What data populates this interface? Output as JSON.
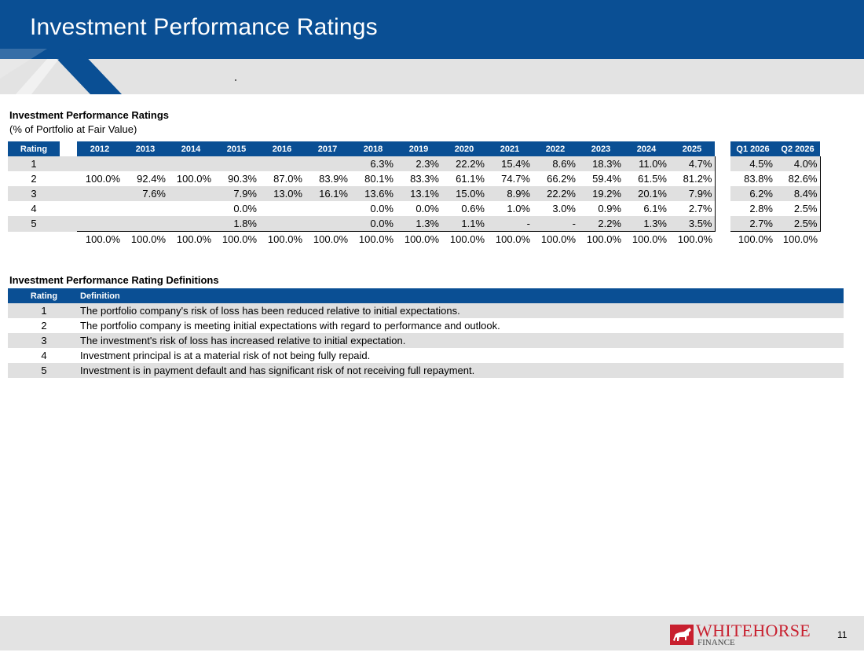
{
  "header": {
    "title": "Investment Performance Ratings"
  },
  "ratings_table": {
    "title": "Investment Performance Ratings",
    "subtitle": "(% of Portfolio at Fair Value)",
    "rating_header": "Rating",
    "year_headers": [
      "2012",
      "2013",
      "2014",
      "2015",
      "2016",
      "2017",
      "2018",
      "2019",
      "2020",
      "2021",
      "2022",
      "2023",
      "2024",
      "2025"
    ],
    "quarter_headers": [
      "Q1 2026",
      "Q2 2026"
    ],
    "rows": [
      {
        "rating": "1",
        "years": [
          "",
          "",
          "",
          "",
          "",
          "",
          "6.3%",
          "2.3%",
          "22.2%",
          "15.4%",
          "8.6%",
          "18.3%",
          "11.0%",
          "4.7%"
        ],
        "quarters": [
          "4.5%",
          "4.0%"
        ]
      },
      {
        "rating": "2",
        "years": [
          "100.0%",
          "92.4%",
          "100.0%",
          "90.3%",
          "87.0%",
          "83.9%",
          "80.1%",
          "83.3%",
          "61.1%",
          "74.7%",
          "66.2%",
          "59.4%",
          "61.5%",
          "81.2%"
        ],
        "quarters": [
          "83.8%",
          "82.6%"
        ]
      },
      {
        "rating": "3",
        "years": [
          "",
          "7.6%",
          "",
          "7.9%",
          "13.0%",
          "16.1%",
          "13.6%",
          "13.1%",
          "15.0%",
          "8.9%",
          "22.2%",
          "19.2%",
          "20.1%",
          "7.9%"
        ],
        "quarters": [
          "6.2%",
          "8.4%"
        ]
      },
      {
        "rating": "4",
        "years": [
          "",
          "",
          "",
          "0.0%",
          "",
          "",
          "0.0%",
          "0.0%",
          "0.6%",
          "1.0%",
          "3.0%",
          "0.9%",
          "6.1%",
          "2.7%"
        ],
        "quarters": [
          "2.8%",
          "2.5%"
        ]
      },
      {
        "rating": "5",
        "years": [
          "",
          "",
          "",
          "1.8%",
          "",
          "",
          "0.0%",
          "1.3%",
          "1.1%",
          "-",
          "-",
          "2.2%",
          "1.3%",
          "3.5%"
        ],
        "quarters": [
          "2.7%",
          "2.5%"
        ]
      }
    ],
    "totals": {
      "years": [
        "100.0%",
        "100.0%",
        "100.0%",
        "100.0%",
        "100.0%",
        "100.0%",
        "100.0%",
        "100.0%",
        "100.0%",
        "100.0%",
        "100.0%",
        "100.0%",
        "100.0%",
        "100.0%"
      ],
      "quarters": [
        "100.0%",
        "100.0%"
      ]
    }
  },
  "definitions": {
    "title": "Investment Performance Rating Definitions",
    "headers": [
      "Rating",
      "Definition"
    ],
    "rows": [
      {
        "rating": "1",
        "definition": "The portfolio company's risk of loss has been reduced relative to initial expectations."
      },
      {
        "rating": "2",
        "definition": "The portfolio company is meeting initial expectations with regard to performance and outlook."
      },
      {
        "rating": "3",
        "definition": "The investment's risk of loss has increased relative to initial expectation."
      },
      {
        "rating": "4",
        "definition": "Investment principal is at a material risk of not being fully repaid."
      },
      {
        "rating": "5",
        "definition": "Investment is in payment default and has significant risk of not receiving full repayment."
      }
    ]
  },
  "footer": {
    "logo_top": "WHITEHORSE",
    "logo_bottom": "FINANCE",
    "page_number": "11"
  },
  "colors": {
    "brand_blue": "#0a4f94",
    "row_shade": "#e0e0e0",
    "logo_red": "#c8202f"
  }
}
